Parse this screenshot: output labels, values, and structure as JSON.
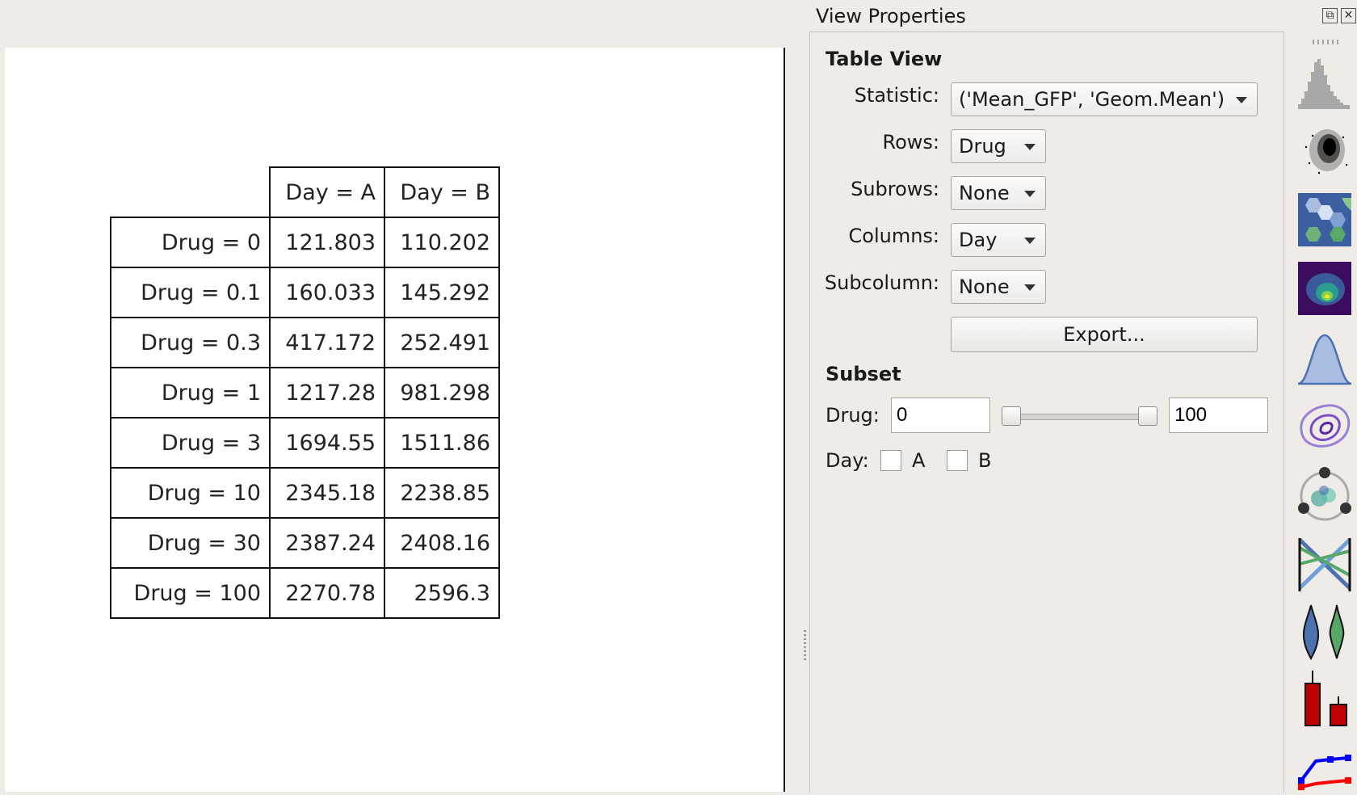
{
  "panel": {
    "title": "View Properties",
    "float_glyph": "⧉",
    "close_glyph": "✕",
    "table_view": {
      "heading": "Table View",
      "statistic_label": "Statistic:",
      "statistic_value": "('Mean_GFP', 'Geom.Mean')",
      "rows_label": "Rows:",
      "rows_value": "Drug",
      "subrows_label": "Subrows:",
      "subrows_value": "None",
      "columns_label": "Columns:",
      "columns_value": "Day",
      "subcolumn_label": "Subcolumn:",
      "subcolumn_value": "None",
      "export_label": "Export..."
    },
    "subset": {
      "heading": "Subset",
      "drug_label": "Drug:",
      "drug_min": "0",
      "drug_max": "100",
      "day_label": "Day:",
      "day_options": [
        "A",
        "B"
      ]
    }
  },
  "table": {
    "columns": [
      "Day = A",
      "Day = B"
    ],
    "rows": [
      {
        "label": "Drug = 0",
        "values": [
          "121.803",
          "110.202"
        ]
      },
      {
        "label": "Drug = 0.1",
        "values": [
          "160.033",
          "145.292"
        ]
      },
      {
        "label": "Drug = 0.3",
        "values": [
          "417.172",
          "252.491"
        ]
      },
      {
        "label": "Drug = 1",
        "values": [
          "1217.28",
          "981.298"
        ]
      },
      {
        "label": "Drug = 3",
        "values": [
          "1694.55",
          "1511.86"
        ]
      },
      {
        "label": "Drug = 10",
        "values": [
          "2345.18",
          "2238.85"
        ]
      },
      {
        "label": "Drug = 30",
        "values": [
          "2387.24",
          "2408.16"
        ]
      },
      {
        "label": "Drug = 100",
        "values": [
          "2270.78",
          "2596.3"
        ]
      }
    ]
  },
  "toolbar": {
    "tools": [
      "histogram-icon",
      "scatterplot-icon",
      "hexbin-icon",
      "density-2d-icon",
      "kde-icon",
      "contour-icon",
      "radviz-icon",
      "parallel-coordinates-icon",
      "violin-icon",
      "bar-chart-icon",
      "line-plot-icon"
    ]
  },
  "colors": {
    "background": "#efebe7",
    "canvas": "#ffffff",
    "hist": "#a8a8a8",
    "blue": "#4c72b0",
    "green": "#55a868",
    "red": "#c00000"
  }
}
